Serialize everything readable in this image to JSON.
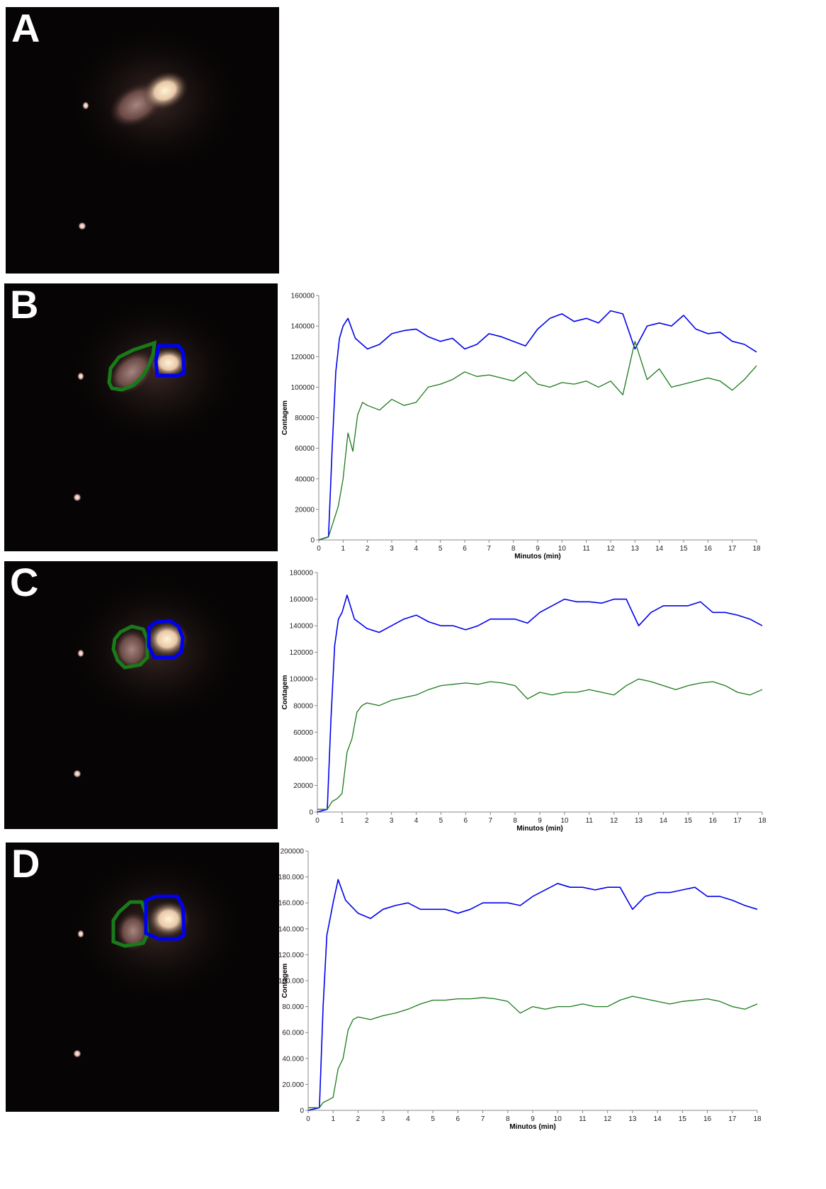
{
  "panels": [
    {
      "letter": "A",
      "has_chart": false
    },
    {
      "letter": "B",
      "has_chart": true
    },
    {
      "letter": "C",
      "has_chart": true
    },
    {
      "letter": "D",
      "has_chart": true
    }
  ],
  "colors": {
    "series_kidney_right": "#0000ee",
    "series_kidney_left": "#1a7a1a",
    "background_image": "#060404"
  },
  "chart_data": [
    {
      "panel": "B",
      "type": "line",
      "xlabel": "Minutos (min)",
      "ylabel": "Contagem",
      "xlim": [
        0,
        18
      ],
      "ylim": [
        0,
        160000
      ],
      "xticks": [
        "0",
        "1",
        "2",
        "3",
        "4",
        "5",
        "6",
        "7",
        "8",
        "9",
        "10",
        "11",
        "12",
        "13",
        "14",
        "15",
        "16",
        "17",
        "18"
      ],
      "yticks": [
        "0",
        "20000",
        "40000",
        "60000",
        "80000",
        "100000",
        "120000",
        "140000",
        "160000"
      ],
      "grid": false,
      "series": [
        {
          "color": "#0000ee",
          "x": [
            0,
            0.4,
            0.55,
            0.7,
            0.85,
            1,
            1.2,
            1.5,
            2,
            2.5,
            3,
            3.5,
            4,
            4.5,
            5,
            5.5,
            6,
            6.5,
            7,
            7.5,
            8,
            8.5,
            9,
            9.5,
            10,
            10.5,
            11,
            11.5,
            12,
            12.5,
            13,
            13.5,
            14,
            14.5,
            15,
            15.5,
            16,
            16.5,
            17,
            17.5,
            18
          ],
          "y": [
            0,
            2000,
            60000,
            110000,
            132000,
            140000,
            145000,
            132000,
            125000,
            128000,
            135000,
            137000,
            138000,
            133000,
            130000,
            132000,
            125000,
            128000,
            135000,
            133000,
            130000,
            127000,
            138000,
            145000,
            148000,
            143000,
            145000,
            142000,
            150000,
            148000,
            125000,
            140000,
            142000,
            140000,
            147000,
            138000,
            135000,
            136000,
            130000,
            128000,
            123000
          ]
        },
        {
          "color": "#1a7a1a",
          "x": [
            0,
            0.4,
            0.6,
            0.8,
            1,
            1.2,
            1.4,
            1.6,
            1.8,
            2,
            2.5,
            3,
            3.5,
            4,
            4.5,
            5,
            5.5,
            6,
            6.5,
            7,
            7.5,
            8,
            8.5,
            9,
            9.5,
            10,
            10.5,
            11,
            11.5,
            12,
            12.5,
            13,
            13.5,
            14,
            14.5,
            15,
            15.5,
            16,
            16.5,
            17,
            17.5,
            18
          ],
          "y": [
            0,
            2000,
            12000,
            22000,
            40000,
            70000,
            58000,
            82000,
            90000,
            88000,
            85000,
            92000,
            88000,
            90000,
            100000,
            102000,
            105000,
            110000,
            107000,
            108000,
            106000,
            104000,
            110000,
            102000,
            100000,
            103000,
            102000,
            104000,
            100000,
            104000,
            95000,
            130000,
            105000,
            112000,
            100000,
            102000,
            104000,
            106000,
            104000,
            98000,
            105000,
            114000
          ]
        }
      ]
    },
    {
      "panel": "C",
      "type": "line",
      "xlabel": "Minutos (min)",
      "ylabel": "Contagem",
      "xlim": [
        0,
        18
      ],
      "ylim": [
        0,
        180000
      ],
      "xticks": [
        "0",
        "1",
        "2",
        "3",
        "4",
        "5",
        "6",
        "7",
        "8",
        "9",
        "10",
        "11",
        "12",
        "13",
        "14",
        "15",
        "16",
        "17",
        "18"
      ],
      "yticks": [
        "0",
        "20000",
        "40000",
        "60000",
        "80000",
        "100000",
        "120000",
        "140000",
        "160000",
        "180000"
      ],
      "grid": false,
      "series": [
        {
          "color": "#0000ee",
          "x": [
            0,
            0.4,
            0.55,
            0.7,
            0.85,
            1,
            1.2,
            1.5,
            2,
            2.5,
            3,
            3.5,
            4,
            4.5,
            5,
            5.5,
            6,
            6.5,
            7,
            7.5,
            8,
            8.5,
            9,
            9.5,
            10,
            10.5,
            11,
            11.5,
            12,
            12.5,
            13,
            13.5,
            14,
            14.5,
            15,
            15.5,
            16,
            16.5,
            17,
            17.5,
            18
          ],
          "y": [
            0,
            2000,
            70000,
            125000,
            145000,
            150000,
            163000,
            145000,
            138000,
            135000,
            140000,
            145000,
            148000,
            143000,
            140000,
            140000,
            137000,
            140000,
            145000,
            145000,
            145000,
            142000,
            150000,
            155000,
            160000,
            158000,
            158000,
            157000,
            160000,
            160000,
            140000,
            150000,
            155000,
            155000,
            155000,
            158000,
            150000,
            150000,
            148000,
            145000,
            140000
          ]
        },
        {
          "color": "#1a7a1a",
          "x": [
            0,
            0.4,
            0.6,
            0.8,
            1,
            1.2,
            1.4,
            1.6,
            1.8,
            2,
            2.5,
            3,
            3.5,
            4,
            4.5,
            5,
            5.5,
            6,
            6.5,
            7,
            7.5,
            8,
            8.5,
            9,
            9.5,
            10,
            10.5,
            11,
            11.5,
            12,
            12.5,
            13,
            13.5,
            14,
            14.5,
            15,
            15.5,
            16,
            16.5,
            17,
            17.5,
            18
          ],
          "y": [
            2000,
            2000,
            8000,
            10000,
            14000,
            45000,
            55000,
            75000,
            80000,
            82000,
            80000,
            84000,
            86000,
            88000,
            92000,
            95000,
            96000,
            97000,
            96000,
            98000,
            97000,
            95000,
            85000,
            90000,
            88000,
            90000,
            90000,
            92000,
            90000,
            88000,
            95000,
            100000,
            98000,
            95000,
            92000,
            95000,
            97000,
            98000,
            95000,
            90000,
            88000,
            92000
          ]
        }
      ]
    },
    {
      "panel": "D",
      "type": "line",
      "xlabel": "Minutos (min)",
      "ylabel": "Contagem",
      "xlim": [
        0,
        18
      ],
      "ylim": [
        0,
        200000
      ],
      "xticks": [
        "0",
        "1",
        "2",
        "3",
        "4",
        "5",
        "6",
        "7",
        "8",
        "9",
        "10",
        "11",
        "12",
        "13",
        "14",
        "15",
        "16",
        "17",
        "18"
      ],
      "yticks": [
        "0",
        "20.000",
        "40.000",
        "60.000",
        "80.000",
        "100.000",
        "120.000",
        "140.000",
        "160.000",
        "180.000",
        "200000"
      ],
      "grid": false,
      "series": [
        {
          "color": "#0000ee",
          "x": [
            0,
            0.45,
            0.6,
            0.75,
            0.9,
            1,
            1.2,
            1.5,
            2,
            2.5,
            3,
            3.5,
            4,
            4.5,
            5,
            5.5,
            6,
            6.5,
            7,
            7.5,
            8,
            8.5,
            9,
            9.5,
            10,
            10.5,
            11,
            11.5,
            12,
            12.5,
            13,
            13.5,
            14,
            14.5,
            15,
            15.5,
            16,
            16.5,
            17,
            17.5,
            18
          ],
          "y": [
            0,
            2000,
            80000,
            135000,
            150000,
            160000,
            178000,
            162000,
            152000,
            148000,
            155000,
            158000,
            160000,
            155000,
            155000,
            155000,
            152000,
            155000,
            160000,
            160000,
            160000,
            158000,
            165000,
            170000,
            175000,
            172000,
            172000,
            170000,
            172000,
            172000,
            155000,
            165000,
            168000,
            168000,
            170000,
            172000,
            165000,
            165000,
            162000,
            158000,
            155000
          ]
        },
        {
          "color": "#1a7a1a",
          "x": [
            0,
            0.45,
            0.6,
            0.8,
            1,
            1.2,
            1.4,
            1.6,
            1.8,
            2,
            2.5,
            3,
            3.5,
            4,
            4.5,
            5,
            5.5,
            6,
            6.5,
            7,
            7.5,
            8,
            8.5,
            9,
            9.5,
            10,
            10.5,
            11,
            11.5,
            12,
            12.5,
            13,
            13.5,
            14,
            14.5,
            15,
            15.5,
            16,
            16.5,
            17,
            17.5,
            18
          ],
          "y": [
            2000,
            2000,
            6000,
            8000,
            10000,
            32000,
            40000,
            62000,
            70000,
            72000,
            70000,
            73000,
            75000,
            78000,
            82000,
            85000,
            85000,
            86000,
            86000,
            87000,
            86000,
            84000,
            75000,
            80000,
            78000,
            80000,
            80000,
            82000,
            80000,
            80000,
            85000,
            88000,
            86000,
            84000,
            82000,
            84000,
            85000,
            86000,
            84000,
            80000,
            78000,
            82000
          ]
        }
      ]
    }
  ]
}
